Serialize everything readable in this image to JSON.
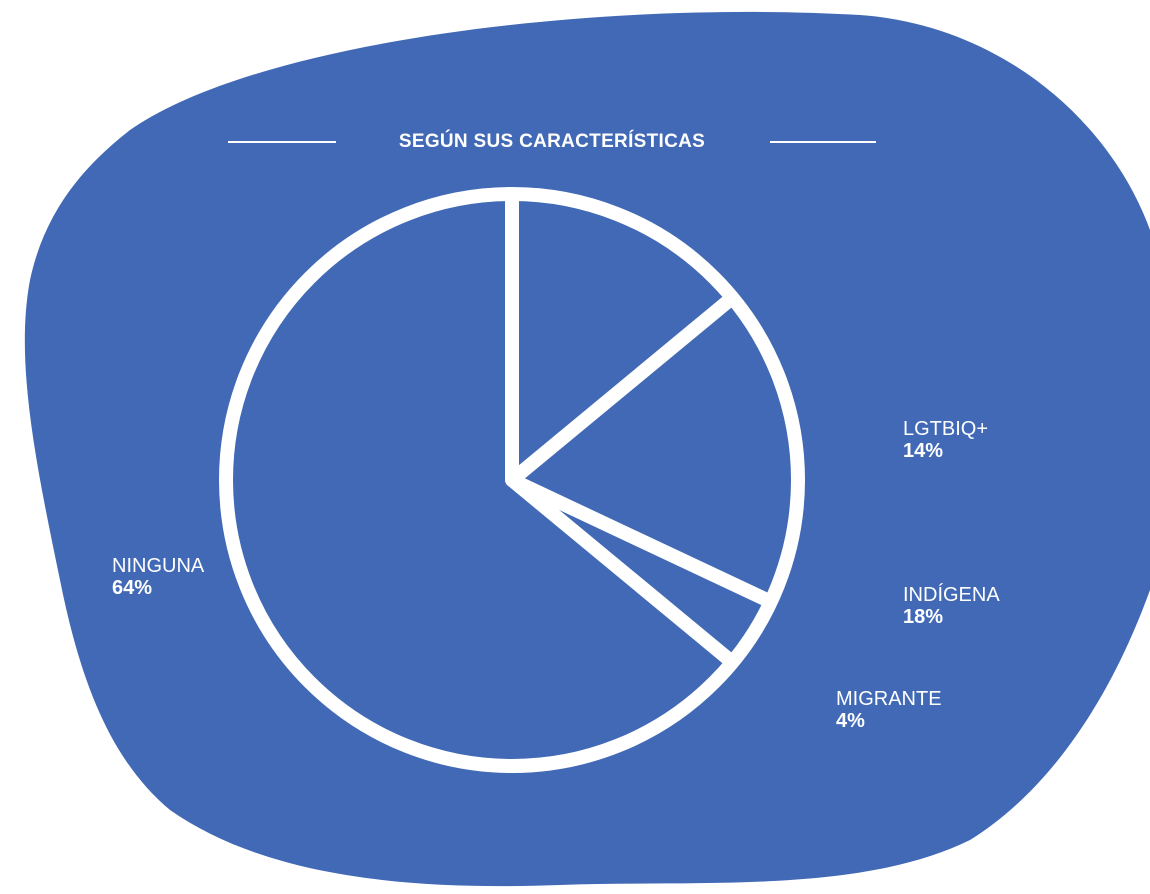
{
  "colors": {
    "background": "#4169b5",
    "stroke": "#ffffff",
    "text": "#ffffff"
  },
  "chart_data": {
    "type": "pie",
    "title": "SEGÚN SUS CARACTERÍSTICAS",
    "slices": [
      {
        "label": "LGTBIQ+",
        "value": 14,
        "display": "14%"
      },
      {
        "label": "INDÍGENA",
        "value": 18,
        "display": "18%"
      },
      {
        "label": "MIGRANTE",
        "value": 4,
        "display": "4%"
      },
      {
        "label": "NINGUNA",
        "value": 64,
        "display": "64%"
      }
    ]
  }
}
